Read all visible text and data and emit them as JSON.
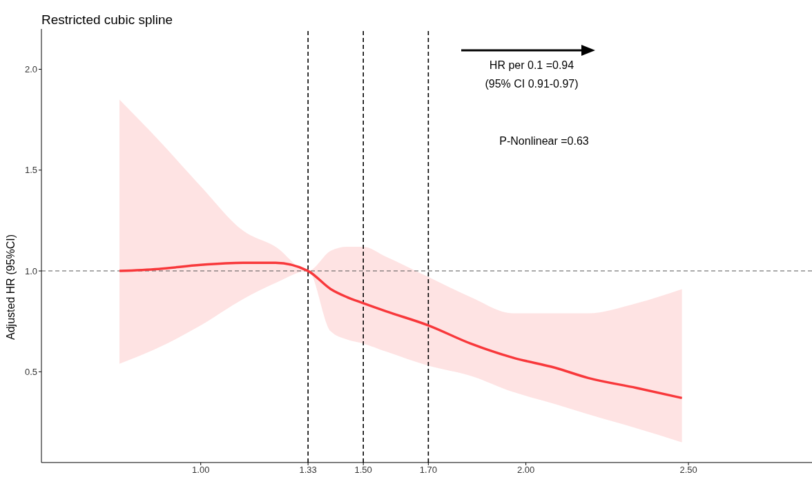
{
  "chart_data": {
    "type": "line",
    "title": "Restricted cubic spline",
    "ylabel": "Adjusted HR (95%CI)",
    "x": [
      0.75,
      0.87,
      1.0,
      1.13,
      1.23,
      1.33,
      1.4,
      1.45,
      1.5,
      1.57,
      1.7,
      1.83,
      1.96,
      2.09,
      2.19,
      2.34,
      2.48
    ],
    "series": [
      {
        "color": "#f8383b",
        "values": [
          1.0,
          1.01,
          1.03,
          1.04,
          1.04,
          1.0,
          0.91,
          0.87,
          0.84,
          0.8,
          0.73,
          0.64,
          0.57,
          0.52,
          0.47,
          0.42,
          0.37
        ],
        "upper": [
          1.85,
          1.65,
          1.42,
          1.2,
          1.12,
          1.0,
          1.1,
          1.12,
          1.12,
          1.07,
          0.97,
          0.87,
          0.79,
          0.79,
          0.79,
          0.84,
          0.91
        ],
        "lower": [
          0.54,
          0.62,
          0.73,
          0.86,
          0.94,
          1.0,
          0.7,
          0.66,
          0.64,
          0.6,
          0.53,
          0.48,
          0.4,
          0.34,
          0.29,
          0.22,
          0.15
        ]
      }
    ],
    "xlim": [
      0.51,
      2.88
    ],
    "ylim": [
      0.05,
      2.2
    ],
    "xticks": [
      {
        "value": 1.0,
        "label": "1.00"
      },
      {
        "value": 1.33,
        "label": "1.33"
      },
      {
        "value": 1.5,
        "label": "1.50"
      },
      {
        "value": 1.7,
        "label": "1.70"
      },
      {
        "value": 2.0,
        "label": "2.00"
      },
      {
        "value": 2.5,
        "label": "2.50"
      }
    ],
    "yticks": [
      {
        "value": 0.5,
        "label": "0.5"
      },
      {
        "value": 1.0,
        "label": "1.0"
      },
      {
        "value": 1.5,
        "label": "1.5"
      },
      {
        "value": 2.0,
        "label": "2.0"
      }
    ],
    "ref_lines": [
      {
        "axis": "x",
        "value": 1.33,
        "color": "#000000",
        "line_style": "dashed"
      },
      {
        "axis": "x",
        "value": 1.5,
        "color": "#000000",
        "line_style": "dashed"
      },
      {
        "axis": "x",
        "value": 1.7,
        "color": "#000000",
        "line_style": "dashed"
      },
      {
        "axis": "y",
        "value": 1.0,
        "color": "#555555",
        "line_style": "dashed"
      }
    ],
    "annotations": [
      "HR per 0.1 =0.94",
      "(95% CI 0.91-0.97)",
      "P-Nonlinear =0.63"
    ],
    "grid": false,
    "marker": "none",
    "line_style": "solid"
  }
}
